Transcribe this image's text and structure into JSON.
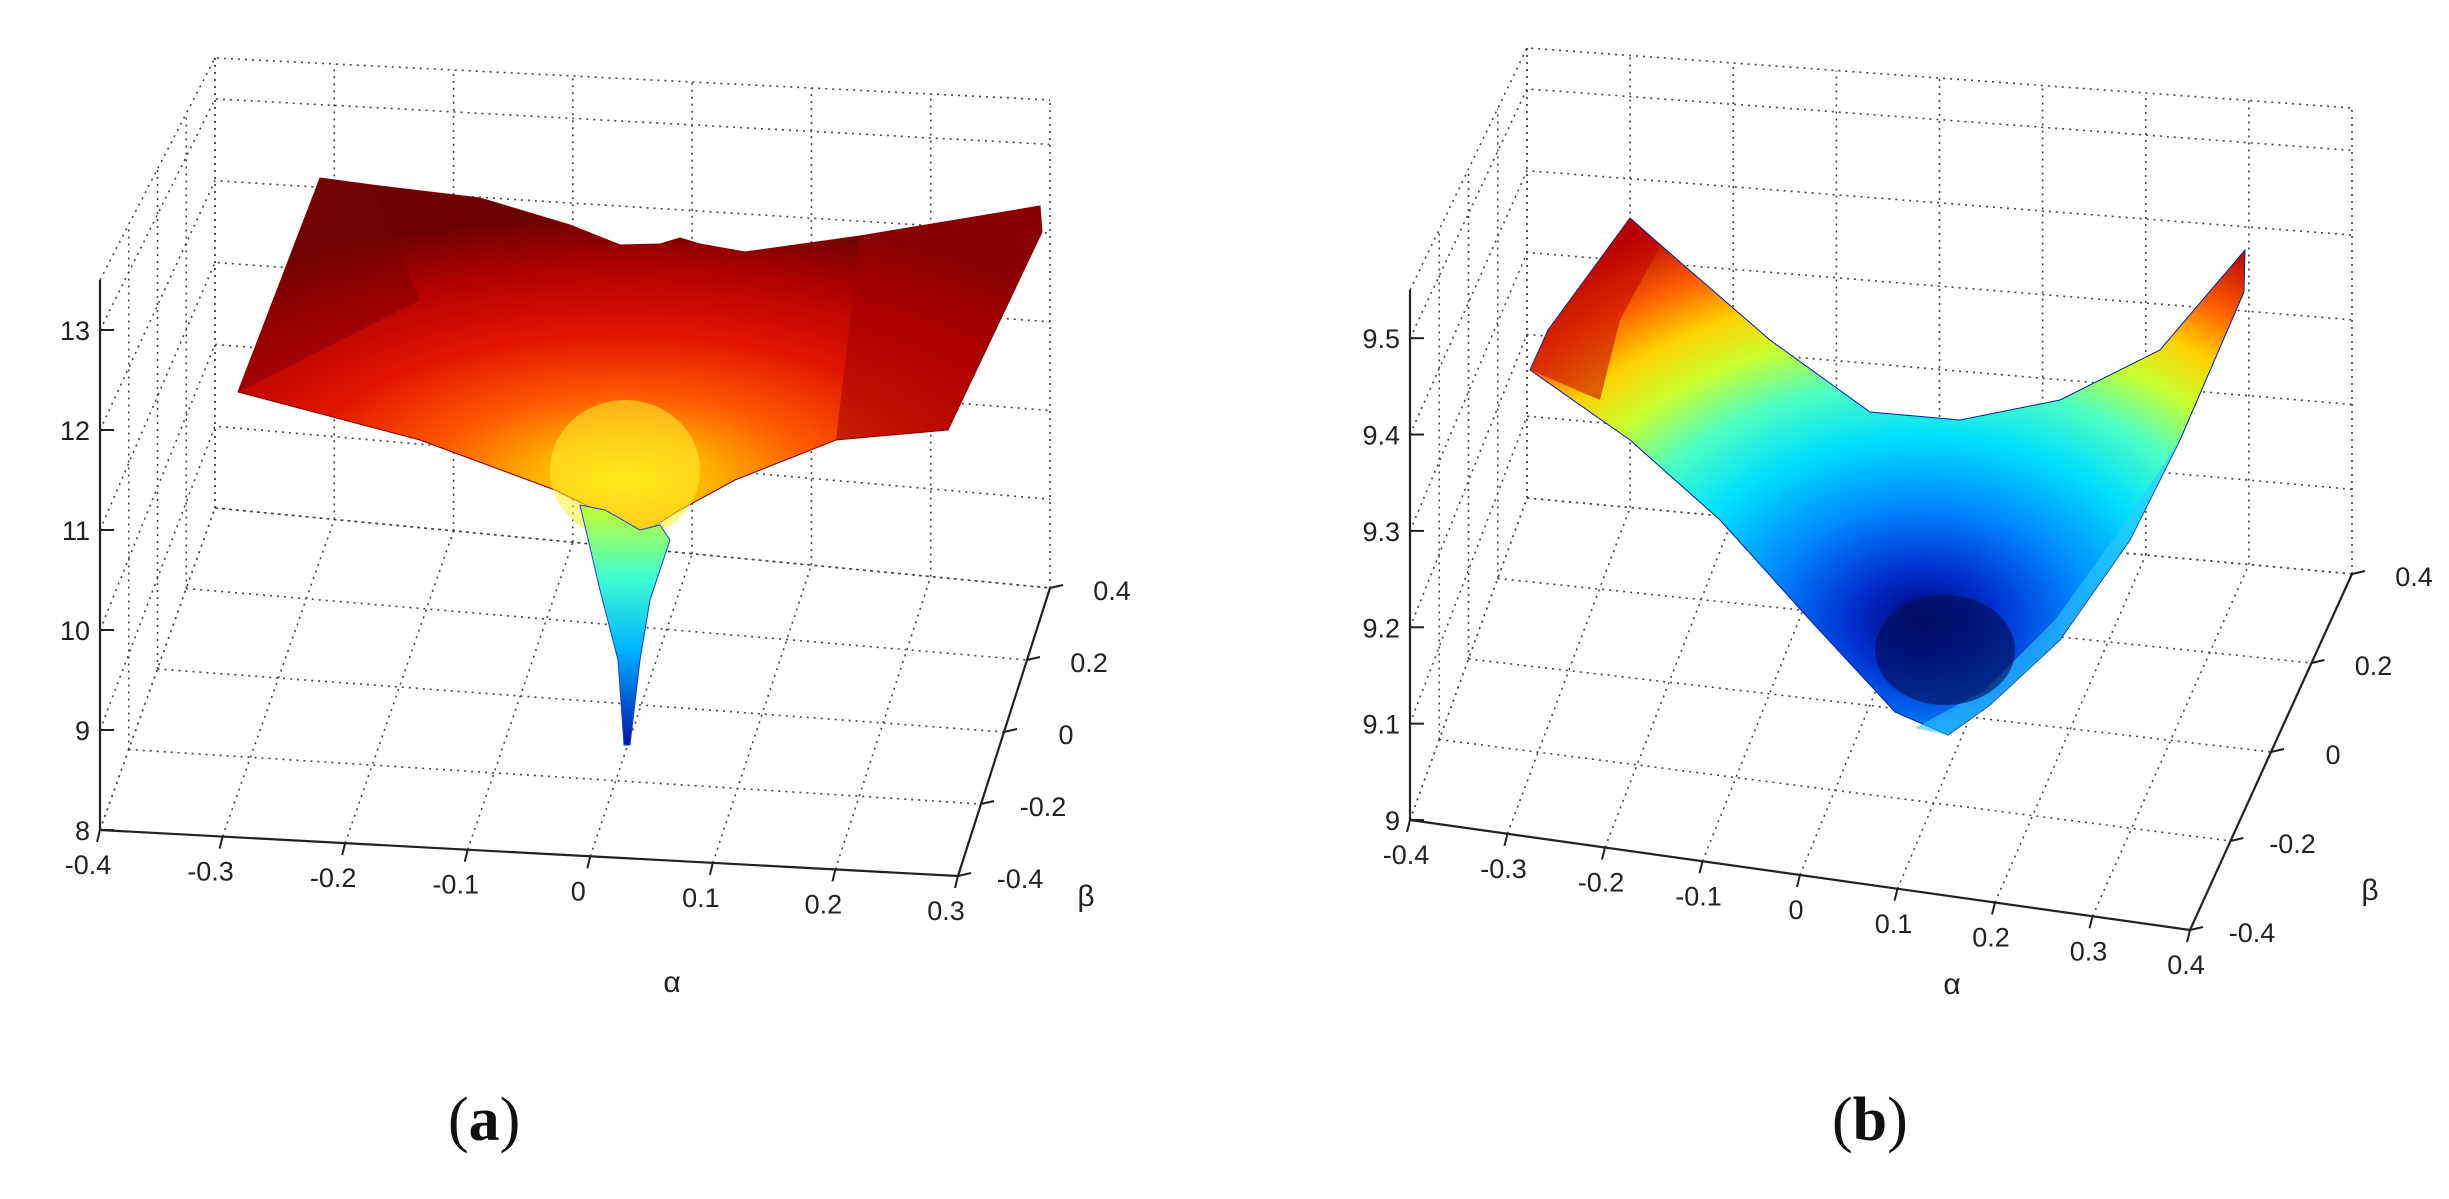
{
  "chart_data": [
    {
      "type": "surface",
      "panel_label": "a",
      "title": "",
      "xlabel": "α",
      "ylabel": "β",
      "zlabel": "",
      "colormap": "hot-to-jet",
      "grid": true,
      "xlim": [
        -0.4,
        0.3
      ],
      "ylim": [
        -0.4,
        0.4
      ],
      "zlim": [
        8,
        13.5
      ],
      "x_ticks": [
        "-0.4",
        "-0.3",
        "-0.2",
        "-0.1",
        "0",
        "0.1",
        "0.2",
        "0.3"
      ],
      "y_ticks": [
        "-0.4",
        "-0.2",
        "0",
        "0.2",
        "0.4"
      ],
      "z_ticks": [
        "8",
        "9",
        "10",
        "11",
        "12",
        "13"
      ],
      "surface_description_values": {
        "plateau_level": 12.9,
        "minimum": {
          "alpha": 0.05,
          "beta": 0.0,
          "z": 9.0
        }
      }
    },
    {
      "type": "surface",
      "panel_label": "b",
      "title": "",
      "xlabel": "α",
      "ylabel": "β",
      "zlabel": "",
      "colormap": "jet",
      "grid": true,
      "xlim": [
        -0.4,
        0.4
      ],
      "ylim": [
        -0.4,
        0.4
      ],
      "zlim": [
        9,
        9.55
      ],
      "x_ticks": [
        "-0.4",
        "-0.3",
        "-0.2",
        "-0.1",
        "0",
        "0.1",
        "0.2",
        "0.3",
        "0.4"
      ],
      "y_ticks": [
        "-0.4",
        "-0.2",
        "0",
        "0.2",
        "0.4"
      ],
      "z_ticks": [
        "9",
        "9.1",
        "9.2",
        "9.3",
        "9.4",
        "9.5"
      ],
      "surface_description_values": {
        "corner_max": 9.52,
        "minimum": {
          "alpha": 0.1,
          "beta": 0.0,
          "z": 9.1
        }
      }
    }
  ],
  "captions": {
    "a": "a",
    "b": "b"
  },
  "colors": {
    "hot": [
      "#6b0000",
      "#a00000",
      "#e01000",
      "#ff4a00",
      "#ff9a00",
      "#ffe000",
      "#c8ff30"
    ],
    "jet": [
      "#00007a",
      "#0040ff",
      "#00b4ff",
      "#40ffd0",
      "#c8ff30",
      "#ffc000",
      "#ff4000",
      "#a00000"
    ]
  }
}
